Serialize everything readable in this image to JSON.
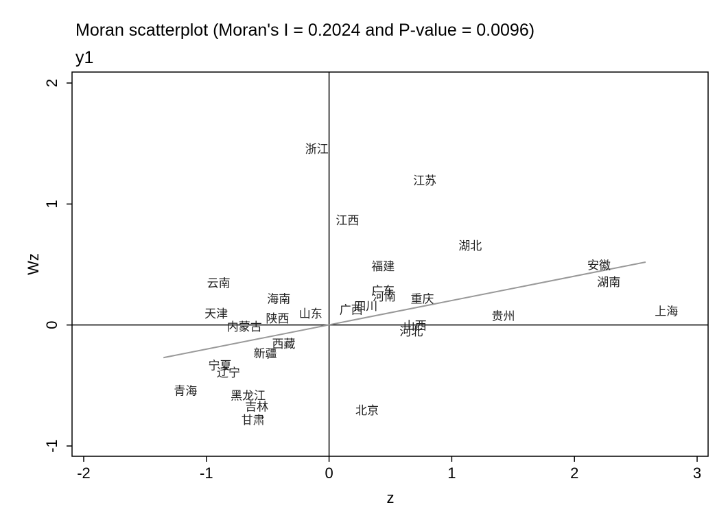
{
  "chart_data": {
    "type": "scatter",
    "title": "Moran scatterplot (Moran's I = 0.2024 and P-value = 0.0096)",
    "subtitle": "y1",
    "xlabel": "z",
    "ylabel": "Wz",
    "xlim": [
      -2,
      3
    ],
    "ylim": [
      -1,
      2
    ],
    "xticks": [
      -2,
      -1,
      0,
      1,
      2,
      3
    ],
    "yticks": [
      -1,
      0,
      1,
      2
    ],
    "fit_line": {
      "x": [
        -1.35,
        2.58
      ],
      "y": [
        -0.27,
        0.52
      ],
      "color": "#999999"
    },
    "points": [
      {
        "label": "浙江",
        "x": -0.1,
        "y": 1.45
      },
      {
        "label": "江苏",
        "x": 0.78,
        "y": 1.19
      },
      {
        "label": "江西",
        "x": 0.15,
        "y": 0.86
      },
      {
        "label": "湖北",
        "x": 1.15,
        "y": 0.65
      },
      {
        "label": "安徽",
        "x": 2.2,
        "y": 0.49
      },
      {
        "label": "湖南",
        "x": 2.28,
        "y": 0.35
      },
      {
        "label": "福建",
        "x": 0.44,
        "y": 0.48
      },
      {
        "label": "云南",
        "x": -0.9,
        "y": 0.34
      },
      {
        "label": "广东",
        "x": 0.44,
        "y": 0.28
      },
      {
        "label": "河南",
        "x": 0.45,
        "y": 0.23
      },
      {
        "label": "重庆",
        "x": 0.76,
        "y": 0.21
      },
      {
        "label": "海南",
        "x": -0.41,
        "y": 0.21
      },
      {
        "label": "四川",
        "x": 0.3,
        "y": 0.15
      },
      {
        "label": "广西",
        "x": 0.18,
        "y": 0.12
      },
      {
        "label": "山东",
        "x": -0.15,
        "y": 0.09
      },
      {
        "label": "天津",
        "x": -0.92,
        "y": 0.09
      },
      {
        "label": "上海",
        "x": 2.75,
        "y": 0.11
      },
      {
        "label": "贵州",
        "x": 1.42,
        "y": 0.07
      },
      {
        "label": "陕西",
        "x": -0.42,
        "y": 0.05
      },
      {
        "label": "内蒙古",
        "x": -0.69,
        "y": -0.02
      },
      {
        "label": "山西",
        "x": 0.7,
        "y": -0.01
      },
      {
        "label": "河北",
        "x": 0.67,
        "y": -0.06
      },
      {
        "label": "西藏",
        "x": -0.37,
        "y": -0.16
      },
      {
        "label": "新疆",
        "x": -0.52,
        "y": -0.24
      },
      {
        "label": "宁夏",
        "x": -0.89,
        "y": -0.34
      },
      {
        "label": "辽宁",
        "x": -0.82,
        "y": -0.4
      },
      {
        "label": "青海",
        "x": -1.17,
        "y": -0.55
      },
      {
        "label": "黑龙江",
        "x": -0.66,
        "y": -0.59
      },
      {
        "label": "吉林",
        "x": -0.59,
        "y": -0.68
      },
      {
        "label": "北京",
        "x": 0.31,
        "y": -0.71
      },
      {
        "label": "甘肃",
        "x": -0.62,
        "y": -0.79
      }
    ]
  }
}
